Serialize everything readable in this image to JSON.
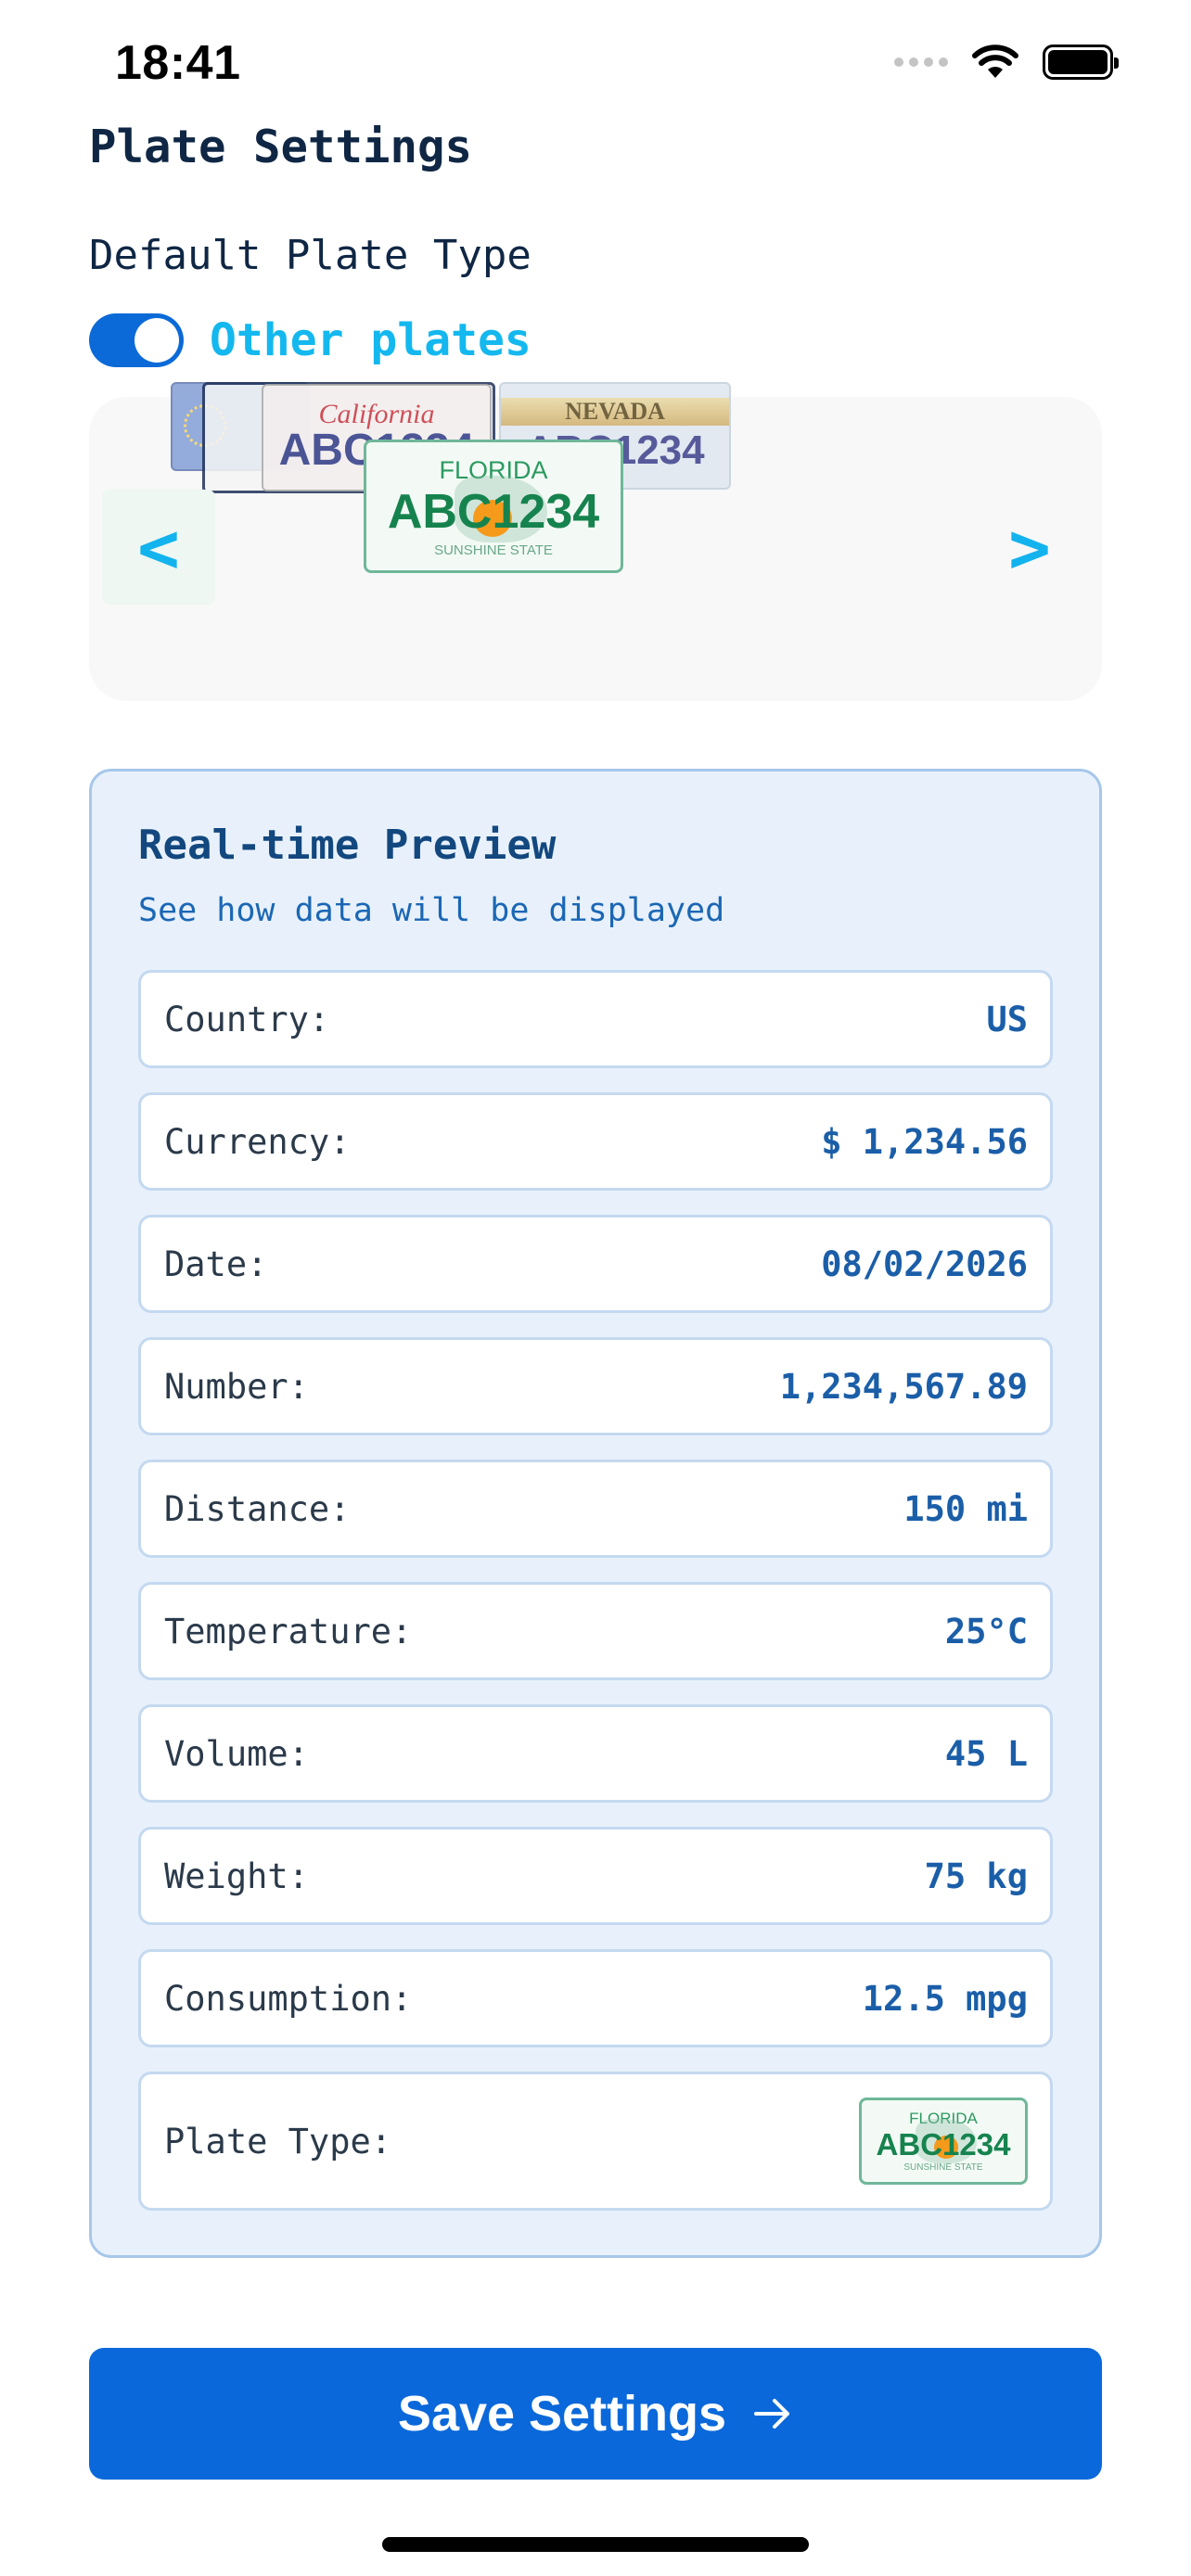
{
  "status_bar": {
    "time": "18:41"
  },
  "page_title": "Plate Settings",
  "default_plate_type_label": "Default Plate Type",
  "toggle": {
    "label": "Other plates",
    "on": true
  },
  "carousel": {
    "prev_label": "<",
    "next_label": ">",
    "plates": {
      "ca": {
        "state": "California",
        "number": "ABC1234"
      },
      "nv": {
        "state": "NEVADA",
        "number": "ABC1234"
      },
      "fl": {
        "state": "FLORIDA",
        "number": "ABC1234",
        "tagline": "SUNSHINE STATE"
      }
    }
  },
  "preview": {
    "title": "Real-time Preview",
    "subtitle": "See how data will be displayed",
    "rows": [
      {
        "label": "Country:",
        "value": "US"
      },
      {
        "label": "Currency:",
        "value": "$ 1,234.56"
      },
      {
        "label": "Date:",
        "value": "08/02/2026"
      },
      {
        "label": "Number:",
        "value": "1,234,567.89"
      },
      {
        "label": "Distance:",
        "value": "150 mi"
      },
      {
        "label": "Temperature:",
        "value": "25°C"
      },
      {
        "label": "Volume:",
        "value": "45 L"
      },
      {
        "label": "Weight:",
        "value": "75 kg"
      },
      {
        "label": "Consumption:",
        "value": "12.5 mpg"
      }
    ],
    "plate_type": {
      "label": "Plate Type:",
      "plate": {
        "state": "FLORIDA",
        "number": "ABC1234",
        "tagline": "SUNSHINE STATE"
      }
    }
  },
  "save_button": {
    "label": "Save Settings",
    "icon": "arrow-right-icon"
  },
  "colors": {
    "accent": "#0a68da",
    "toggle_label": "#14b8ee",
    "preview_bg": "#e8f1fb",
    "value_text": "#1b5ea8"
  }
}
